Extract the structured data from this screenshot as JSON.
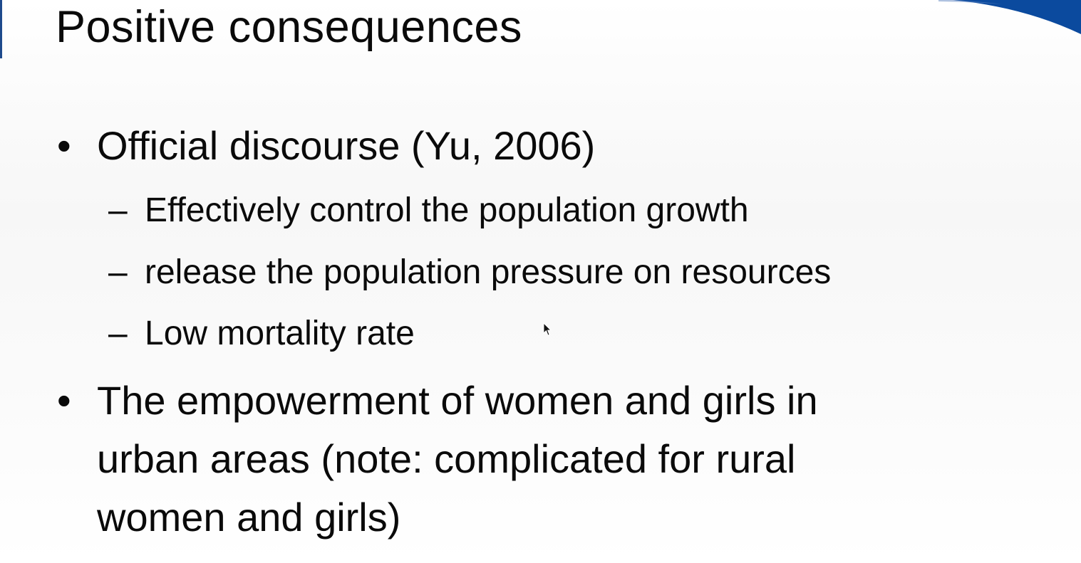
{
  "slide": {
    "title": "Positive consequences",
    "bullets": [
      {
        "marker": "•",
        "text": "Official discourse (Yu, 2006)",
        "subitems": [
          {
            "marker": "–",
            "text": "Effectively control the population growth"
          },
          {
            "marker": "–",
            "text": "release the population pressure on resources"
          },
          {
            "marker": "–",
            "text": "Low mortality rate"
          }
        ]
      },
      {
        "marker": "•",
        "lines": [
          "The empowerment of women and girls in",
          "urban areas (note: complicated for rural",
          "women and girls)"
        ]
      }
    ]
  },
  "colors": {
    "accent": "#0b4a9e",
    "text": "#0a0a0a",
    "background": "#f8f8f8"
  },
  "icons": {
    "cursor": "mouse-pointer-icon",
    "decoration": "corner-swoosh-icon"
  }
}
